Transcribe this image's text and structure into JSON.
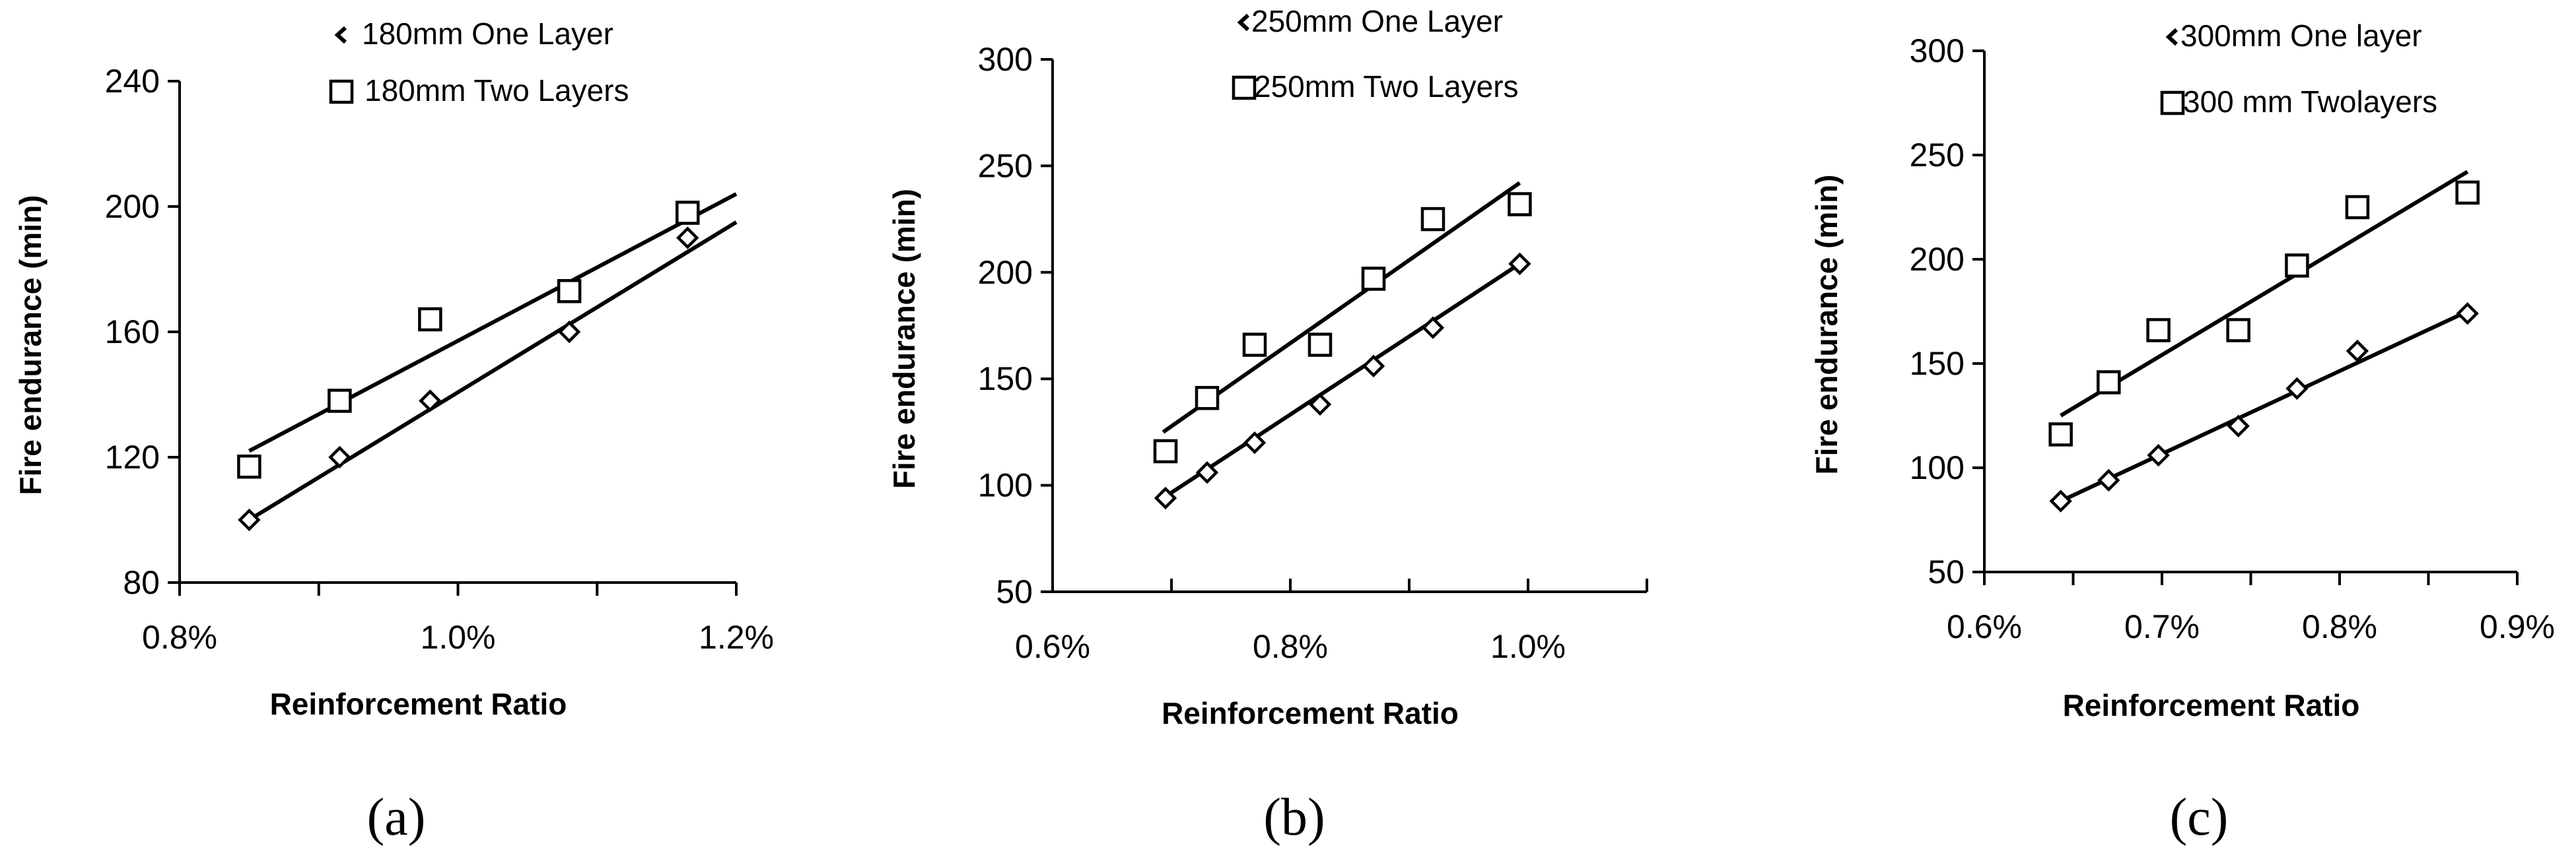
{
  "chart_data": [
    {
      "type": "scatter",
      "panel_label": "a",
      "title": "",
      "xlabel": "Reinforcement Ratio",
      "ylabel": "Fire endurance (min)",
      "xlim": [
        0.8,
        1.2
      ],
      "ylim": [
        80,
        240
      ],
      "xticks": [
        0.8,
        0.9,
        1.0,
        1.1,
        1.2
      ],
      "xtick_labels": [
        "0.8%",
        "",
        "1.0%",
        "",
        "1.2%"
      ],
      "yticks": [
        80,
        120,
        160,
        200,
        240
      ],
      "ytick_labels": [
        "80",
        "120",
        "160",
        "200",
        "240"
      ],
      "legend_position": "top-right",
      "series": [
        {
          "name": "180mm One Layer",
          "marker": "diamond",
          "x": [
            0.85,
            0.915,
            0.98,
            1.08,
            1.165
          ],
          "y": [
            100,
            120,
            138,
            160,
            190
          ],
          "trendline": [
            [
              0.85,
              100
            ],
            [
              1.2,
              195
            ]
          ]
        },
        {
          "name": "180mm Two Layers",
          "marker": "square",
          "x": [
            0.85,
            0.915,
            0.98,
            1.08,
            1.165
          ],
          "y": [
            117,
            138,
            164,
            173,
            198
          ],
          "trendline": [
            [
              0.85,
              122
            ],
            [
              1.2,
              204
            ]
          ]
        }
      ]
    },
    {
      "type": "scatter",
      "panel_label": "b",
      "title": "",
      "xlabel": "Reinforcement Ratio",
      "ylabel": "Fire endurance (min)",
      "xlim": [
        0.6,
        1.1
      ],
      "ylim": [
        50,
        300
      ],
      "xticks": [
        0.6,
        0.7,
        0.8,
        0.9,
        1.0,
        1.1
      ],
      "xtick_labels": [
        "0.6%",
        "",
        "0.8%",
        "",
        "1.0%",
        ""
      ],
      "yticks": [
        50,
        100,
        150,
        200,
        250,
        300
      ],
      "ytick_labels": [
        "50",
        "100",
        "150",
        "200",
        "250",
        "300"
      ],
      "legend_position": "top-right",
      "series": [
        {
          "name": "250mm One Layer",
          "marker": "diamond",
          "x": [
            0.695,
            0.73,
            0.77,
            0.825,
            0.87,
            0.92,
            0.993
          ],
          "y": [
            94,
            106,
            120,
            138,
            156,
            174,
            204
          ],
          "trendline": [
            [
              0.693,
              94
            ],
            [
              0.993,
              204
            ]
          ]
        },
        {
          "name": "250mm Two Layers",
          "marker": "square",
          "x": [
            0.695,
            0.73,
            0.77,
            0.825,
            0.87,
            0.92,
            0.993
          ],
          "y": [
            116,
            141,
            166,
            166,
            197,
            225,
            232
          ],
          "trendline": [
            [
              0.693,
              125
            ],
            [
              0.993,
              242
            ]
          ]
        }
      ]
    },
    {
      "type": "scatter",
      "panel_label": "c",
      "title": "",
      "xlabel": "Reinforcement Ratio",
      "ylabel": "Fire endurance (min)",
      "xlim": [
        0.6,
        0.9
      ],
      "ylim": [
        50,
        300
      ],
      "xticks": [
        0.6,
        0.7,
        0.8,
        0.9
      ],
      "xtick_labels": [
        "0.6%",
        "0.7%",
        "0.8%",
        "0.9%"
      ],
      "minor_xticks": [
        0.65,
        0.75,
        0.85
      ],
      "yticks": [
        50,
        100,
        150,
        200,
        250,
        300
      ],
      "ytick_labels": [
        "50",
        "100",
        "150",
        "200",
        "250",
        "300"
      ],
      "legend_position": "top-right",
      "series": [
        {
          "name": "300mm One layer",
          "marker": "diamond",
          "x": [
            0.643,
            0.67,
            0.698,
            0.743,
            0.776,
            0.81,
            0.872
          ],
          "y": [
            84,
            94,
            106,
            120,
            138,
            156,
            174
          ],
          "trendline": [
            [
              0.643,
              84
            ],
            [
              0.872,
              175
            ]
          ]
        },
        {
          "name": "300 mm Twolayers",
          "marker": "square",
          "x": [
            0.643,
            0.67,
            0.698,
            0.743,
            0.776,
            0.81,
            0.872
          ],
          "y": [
            116,
            141,
            166,
            166,
            197,
            225,
            232
          ],
          "trendline": [
            [
              0.643,
              125
            ],
            [
              0.872,
              242
            ]
          ]
        }
      ]
    }
  ],
  "panel_labels": [
    "(a)",
    "(b)",
    "(c)"
  ]
}
